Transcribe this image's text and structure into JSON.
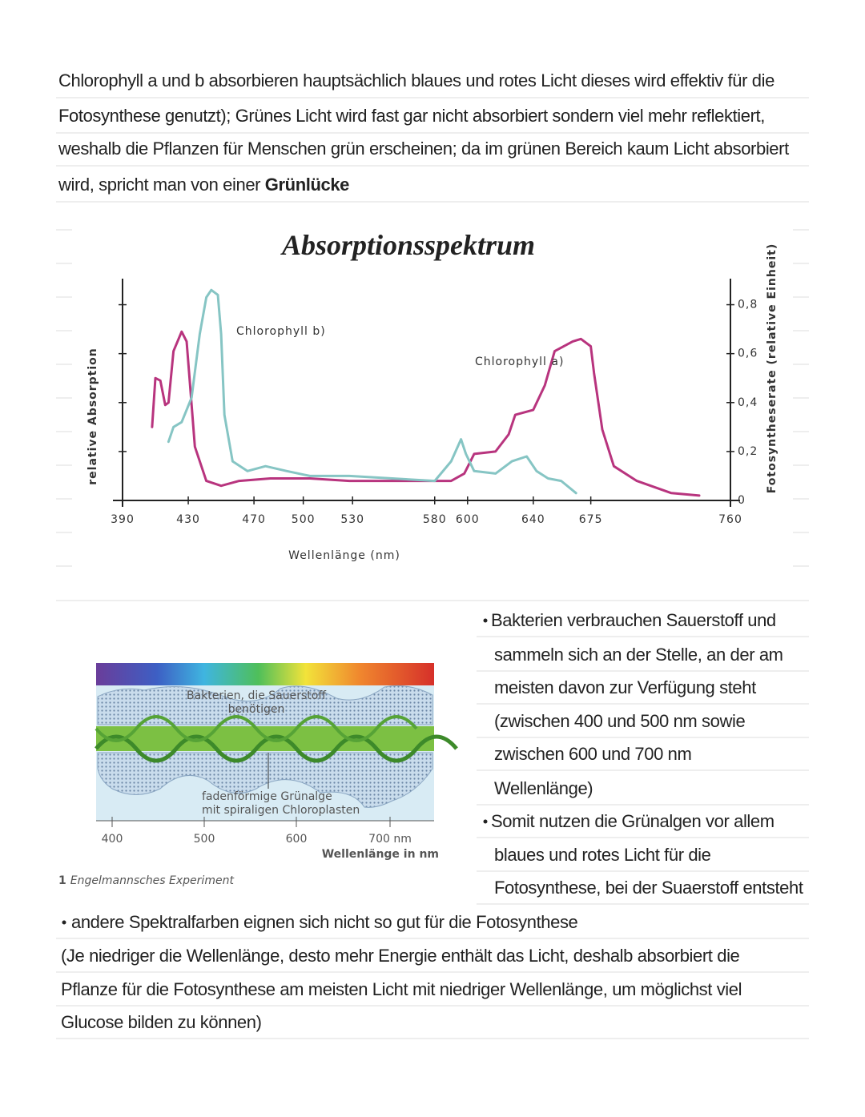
{
  "intro": {
    "lines": [
      "Chlorophyll a und b absorbieren hauptsächlich blaues und rotes Licht dieses wird effektiv für die",
      "Fotosynthese genutzt); Grünes Licht wird fast gar nicht absorbiert sondern viel mehr reflektiert,",
      "weshalb die Pflanzen für Menschen grün erscheinen; da im grünen Bereich kaum Licht absorbiert",
      "wird, spricht man von einer "
    ],
    "emphasis": "Grünlücke"
  },
  "chart_data": {
    "type": "line",
    "title": "Absorptionsspektrum",
    "x_label": "Wellenlänge (nm)",
    "y_label": "relative Absorption",
    "y2_label": "Fotosyntheserate (relative Einheit)",
    "xlim": [
      390,
      760
    ],
    "xticks": [
      390,
      430,
      470,
      500,
      530,
      580,
      600,
      640,
      675,
      760
    ],
    "ylim": [
      0,
      0.9
    ],
    "yticks": [
      0,
      {
        "value": 0.2,
        "label": "0,2"
      },
      {
        "value": 0.4,
        "label": "0,4"
      },
      {
        "value": 0.6,
        "label": "0,6"
      },
      {
        "value": 0.8,
        "label": "0,8"
      }
    ],
    "series": [
      {
        "name": "Chlorophyll a)",
        "color": "#b8347e",
        "x": [
          408,
          410,
          413,
          416,
          418,
          421,
          426,
          429,
          431,
          434,
          441,
          450,
          461,
          480,
          504,
          528,
          580,
          590,
          598,
          604,
          617,
          625,
          629,
          640,
          647,
          653,
          664,
          669,
          675,
          677,
          682,
          689,
          703,
          724,
          741
        ],
        "values": [
          0.3,
          0.5,
          0.49,
          0.39,
          0.4,
          0.61,
          0.69,
          0.65,
          0.48,
          0.22,
          0.08,
          0.06,
          0.08,
          0.09,
          0.09,
          0.08,
          0.08,
          0.08,
          0.11,
          0.19,
          0.2,
          0.27,
          0.35,
          0.37,
          0.47,
          0.61,
          0.65,
          0.66,
          0.63,
          0.52,
          0.29,
          0.14,
          0.08,
          0.03,
          0.02
        ]
      },
      {
        "name": "Chlorophyll b)",
        "color": "#86c5c4",
        "x": [
          418,
          421,
          426,
          432,
          437,
          441,
          444,
          448,
          450,
          452,
          457,
          466,
          477,
          490,
          504,
          528,
          580,
          590,
          596,
          599,
          604,
          617,
          627,
          636,
          642,
          649,
          657,
          666
        ],
        "values": [
          0.24,
          0.3,
          0.32,
          0.42,
          0.68,
          0.83,
          0.86,
          0.84,
          0.68,
          0.35,
          0.16,
          0.12,
          0.14,
          0.12,
          0.1,
          0.1,
          0.08,
          0.16,
          0.25,
          0.19,
          0.12,
          0.11,
          0.16,
          0.18,
          0.12,
          0.09,
          0.08,
          0.03
        ]
      }
    ]
  },
  "figure": {
    "bacteria_label": [
      "Bakterien, die Sauerstoff",
      "benötigen"
    ],
    "alga_label": [
      "fadenförmige Grünalge",
      "mit spiraligen Chloroplasten"
    ],
    "ticks": [
      "400",
      "500",
      "600",
      "700 nm"
    ],
    "axis_label": "Wellenlänge in nm",
    "caption_number": "1",
    "caption": "Engelmannsches Experiment"
  },
  "bullets": [
    {
      "lines": [
        "Bakterien verbrauchen Sauerstoff und",
        "sammeln sich an der Stelle, an der am",
        "meisten davon zur Verfügung steht",
        "(zwischen 400 und 500 nm sowie",
        "zwischen 600 und 700 nm",
        "Wellenlänge)"
      ]
    },
    {
      "lines": [
        "Somit nutzen die Grünalgen vor allem",
        "blaues und rotes Licht für die",
        "Fotosynthese, bei der Suaerstoff entsteht"
      ]
    }
  ],
  "conclusion": {
    "bullet_line": "andere Spektralfarben eignen sich nicht so gut für die Fotosynthese",
    "lines": [
      "(Je niedriger die Wellenlänge, desto mehr Energie enthält das Licht, deshalb absorbiert die",
      "Pflanze für die Fotosynthese am meisten Licht mit niedriger Wellenlänge, um möglichst viel",
      "Glucose bilden zu können)"
    ]
  }
}
